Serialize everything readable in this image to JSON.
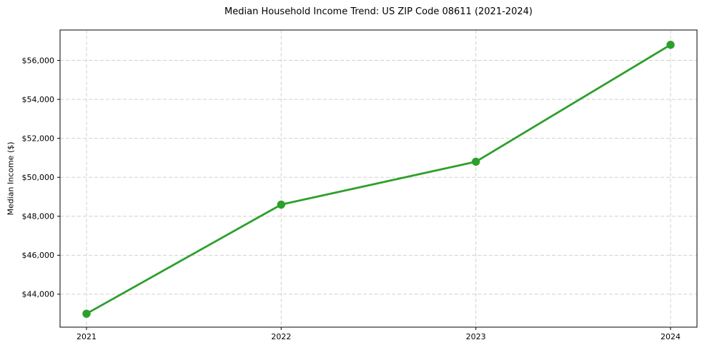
{
  "chart_data": {
    "type": "line",
    "title": "Median Household Income Trend: US ZIP Code 08611 (2021-2024)",
    "xlabel": "",
    "ylabel": "Median Income ($)",
    "categories": [
      "2021",
      "2022",
      "2023",
      "2024"
    ],
    "values": [
      43000,
      48600,
      50800,
      56800
    ],
    "ylim": [
      42310,
      57560
    ],
    "yticks": [
      44000,
      46000,
      48000,
      50000,
      52000,
      54000,
      56000
    ],
    "ytick_labels": [
      "$44,000",
      "$46,000",
      "$48,000",
      "$50,000",
      "$52,000",
      "$54,000",
      "$56,000"
    ],
    "grid": true,
    "grid_style": "dashed",
    "legend_position": "none",
    "line_color": "#2ca02c",
    "marker": "circle",
    "grid_color": "#d0d0d0",
    "axis_color": "#000000",
    "background_color": "#ffffff"
  }
}
